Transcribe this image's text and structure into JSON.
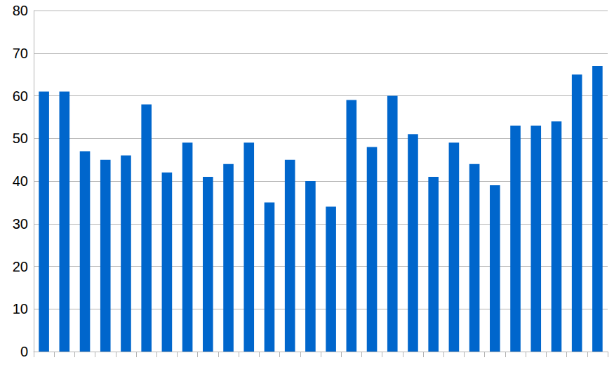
{
  "chart_data": {
    "type": "bar",
    "categories": [
      null,
      null,
      null,
      null,
      null,
      null,
      null,
      null,
      null,
      null,
      null,
      null,
      null,
      null,
      null,
      null,
      null,
      null,
      null,
      null,
      null,
      null,
      null,
      null,
      null,
      null,
      null,
      null
    ],
    "values": [
      61,
      61,
      47,
      45,
      46,
      58,
      42,
      49,
      41,
      44,
      49,
      35,
      45,
      40,
      34,
      59,
      48,
      60,
      51,
      41,
      49,
      44,
      39,
      53,
      53,
      54,
      65,
      67
    ],
    "color": "#0066cc",
    "ylim": [
      0,
      80
    ],
    "yticks": [
      0,
      10,
      20,
      30,
      40,
      50,
      60,
      70,
      80
    ],
    "grid": true,
    "tick_labels": "y"
  }
}
